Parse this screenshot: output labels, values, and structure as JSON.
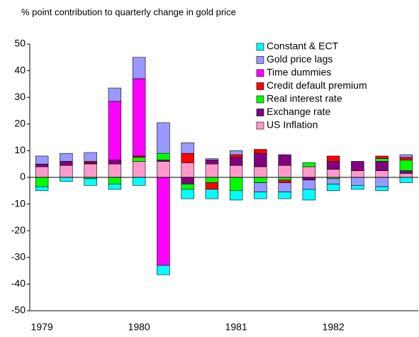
{
  "chart_data": {
    "type": "bar",
    "stacked": true,
    "title": "% point contribution to quarterly change in gold price",
    "categories": [
      "1979",
      null,
      null,
      null,
      "1980",
      null,
      null,
      null,
      "1981",
      null,
      null,
      null,
      "1982",
      null,
      null,
      null
    ],
    "series": [
      {
        "name": "Constant & ECT",
        "color": "#00ffff",
        "values": [
          -1.5,
          -1.5,
          -2.5,
          -2,
          -3,
          -3.5,
          -3.5,
          -3.5,
          -3.5,
          -2.5,
          -2.5,
          -4,
          -2.5,
          -1.5,
          -1.5,
          -2
        ]
      },
      {
        "name": "Gold price lags",
        "color": "#9999ff",
        "values": [
          3,
          3,
          3.3,
          5,
          8,
          11.5,
          4,
          0.5,
          1.5,
          -3.5,
          -3.5,
          -3.5,
          -2,
          -3,
          -3.5,
          1
        ]
      },
      {
        "name": "Time dummies",
        "color": "#ff00ff",
        "values": [
          0,
          0,
          0,
          22,
          29,
          -33,
          0,
          0,
          0,
          0,
          0,
          0,
          0,
          0,
          0,
          0
        ]
      },
      {
        "name": "Credit default premium",
        "color": "#ff0000",
        "values": [
          0,
          0,
          0.5,
          0,
          0.5,
          0,
          3.5,
          -2.5,
          1,
          1.5,
          -1,
          0,
          2,
          0,
          1,
          1
        ]
      },
      {
        "name": "Real interest rate",
        "color": "#00ff00",
        "values": [
          -3.5,
          0,
          -0.5,
          -2.5,
          1.5,
          2.5,
          -2,
          -2,
          -5,
          -2,
          -1,
          1.5,
          -0.5,
          0,
          1,
          4
        ]
      },
      {
        "name": "Exchange rate",
        "color": "#800080",
        "values": [
          1,
          1.5,
          0.5,
          1.5,
          0,
          0.5,
          -2.5,
          1.5,
          3,
          5,
          4,
          -1,
          3,
          3.5,
          3.5,
          1
        ]
      },
      {
        "name": "US Inflation",
        "color": "#ff99cc",
        "values": [
          4,
          4.5,
          5,
          5,
          6,
          6,
          5.5,
          5,
          4.5,
          4,
          4.5,
          4,
          3,
          2.5,
          2.5,
          1.5
        ]
      }
    ],
    "ylim": [
      -50,
      50
    ],
    "yticks": [
      -50,
      -40,
      -30,
      -20,
      -10,
      0,
      10,
      20,
      30,
      40,
      50
    ],
    "grid": false,
    "legend": "upper right"
  }
}
